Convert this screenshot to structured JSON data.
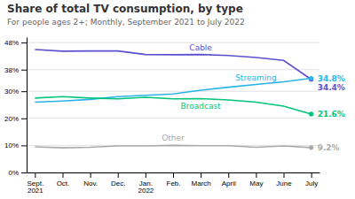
{
  "chart_data": {
    "type": "line",
    "title": "Share of total TV consumption, by type",
    "subtitle": "For people ages 2+; Monthly, September 2021 to July 2022",
    "categories": [
      "Sept.\n2021",
      "Oct.",
      "Nov.",
      "Dec.",
      "Jan.\n2022",
      "Feb.",
      "March",
      "April",
      "May",
      "June",
      "July"
    ],
    "series": [
      {
        "name": "Cable",
        "color": "#5b4fcf",
        "values": [
          45.4,
          44.8,
          44.9,
          44.9,
          43.6,
          43.5,
          43.6,
          43.2,
          42.5,
          41.4,
          34.4
        ],
        "value_labels": [
          null,
          null,
          null,
          null,
          null,
          null,
          null,
          null,
          null,
          null,
          "34.4%"
        ]
      },
      {
        "name": "Streaming",
        "color": "#28b4e8",
        "values": [
          26.0,
          26.4,
          27.0,
          28.0,
          28.5,
          29.0,
          30.4,
          31.5,
          32.5,
          33.5,
          34.8
        ],
        "value_labels": [
          null,
          null,
          null,
          null,
          null,
          null,
          null,
          null,
          null,
          null,
          "34.8%"
        ]
      },
      {
        "name": "Broadcast",
        "color": "#00c47a",
        "values": [
          27.5,
          28.0,
          27.5,
          27.2,
          27.8,
          27.2,
          27.3,
          26.8,
          26.0,
          24.5,
          21.6
        ],
        "value_labels": [
          null,
          null,
          null,
          null,
          null,
          null,
          null,
          null,
          null,
          null,
          "21.6%"
        ]
      },
      {
        "name": "Other",
        "color": "#aaaaaa",
        "values": [
          9.5,
          9.1,
          9.3,
          9.8,
          9.8,
          10.0,
          9.9,
          9.9,
          9.3,
          9.8,
          9.2
        ],
        "value_labels": [
          null,
          null,
          null,
          null,
          null,
          null,
          null,
          null,
          null,
          null,
          "9.2%"
        ]
      }
    ],
    "ylim": [
      0,
      50
    ],
    "yticks": [
      {
        "value": 0,
        "label": "0%"
      },
      {
        "value": 10,
        "label": "10%"
      },
      {
        "value": 20,
        "label": "20%"
      },
      {
        "value": 30,
        "label": "30%"
      },
      {
        "value": 38,
        "label": "38%"
      },
      {
        "value": 48,
        "label": "48%"
      }
    ],
    "grid": true,
    "data_labels": true
  }
}
